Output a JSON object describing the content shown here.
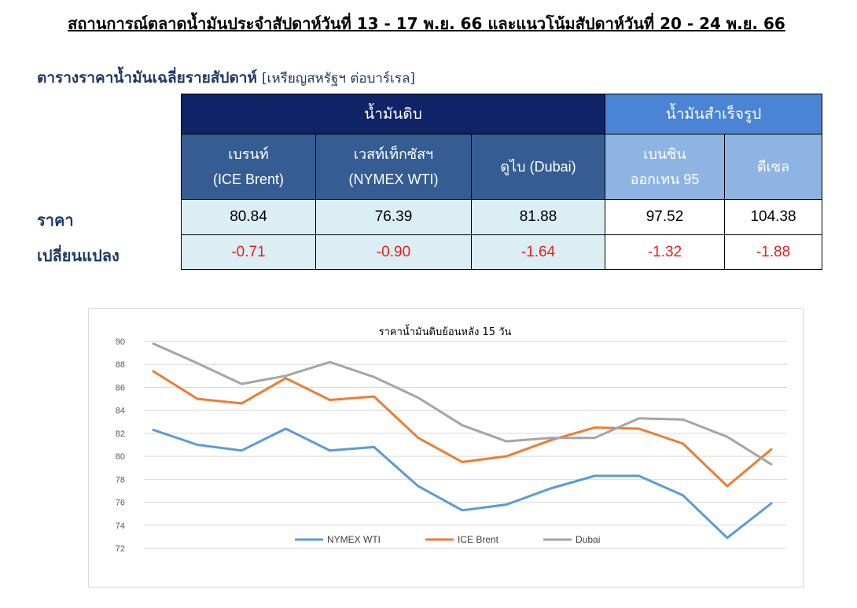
{
  "header": {
    "title": "สถานการณ์ตลาดน้ำมันประจำสัปดาห์วันที่ 13 - 17 พ.ย. 66 และแนวโน้มสัปดาห์วันที่ 20 - 24 พ.ย. 66"
  },
  "table": {
    "caption_bold": "ตารางราคาน้ำมันเฉลี่ยรายสัปดาห์",
    "caption_unit": "[เหรียญสหรัฐฯ ต่อบาร์เรล]",
    "group_crude": "น้ำมันดิบ",
    "group_refined": "น้ำมันสำเร็จรูป",
    "columns": [
      {
        "line1": "เบรนท์",
        "line2": "(ICE Brent)"
      },
      {
        "line1": "เวสท์เท็กซัสฯ",
        "line2": "(NYMEX WTI)"
      },
      {
        "line1": "ดูไบ (Dubai)",
        "line2": ""
      },
      {
        "line1": "เบนซิน",
        "line2": "ออกเทน  95"
      },
      {
        "line1": "ดีเซล",
        "line2": ""
      }
    ],
    "row_price_label": "ราคา",
    "row_change_label": "เปลี่ยนแปลง",
    "prices": [
      "80.84",
      "76.39",
      "81.88",
      "97.52",
      "104.38"
    ],
    "changes": [
      "-0.71",
      "-0.90",
      "-1.64",
      "-1.32",
      "-1.88"
    ],
    "change_color": "#e8201a",
    "crude_header_color": "#0f2366",
    "refined_header_color": "#4a84d4"
  },
  "chart_data": {
    "type": "line",
    "title": "ราคาน้ำมันดิบย้อนหลัง 15 วัน",
    "xlabel": "",
    "ylabel": "",
    "ylim": [
      72,
      90
    ],
    "yticks": [
      90,
      88,
      86,
      84,
      82,
      80,
      78,
      76,
      74,
      72
    ],
    "grid": true,
    "legend_position": "bottom",
    "series": [
      {
        "name": "NYMEX WTI",
        "color": "#5b9bd5",
        "values": [
          82.3,
          81.0,
          80.5,
          82.4,
          80.5,
          80.8,
          77.4,
          75.3,
          75.8,
          77.2,
          78.3,
          78.3,
          76.6,
          72.9,
          75.9
        ]
      },
      {
        "name": "ICE Brent",
        "color": "#ed7d31",
        "values": [
          87.4,
          85.0,
          84.6,
          86.8,
          84.9,
          85.2,
          81.6,
          79.5,
          80.0,
          81.4,
          82.5,
          82.4,
          81.1,
          77.4,
          80.6
        ]
      },
      {
        "name": "Dubai",
        "color": "#a5a5a5",
        "values": [
          89.8,
          88.1,
          86.3,
          87.0,
          88.2,
          86.9,
          85.1,
          82.7,
          81.3,
          81.6,
          81.6,
          83.3,
          83.2,
          81.7,
          79.3
        ]
      }
    ]
  }
}
